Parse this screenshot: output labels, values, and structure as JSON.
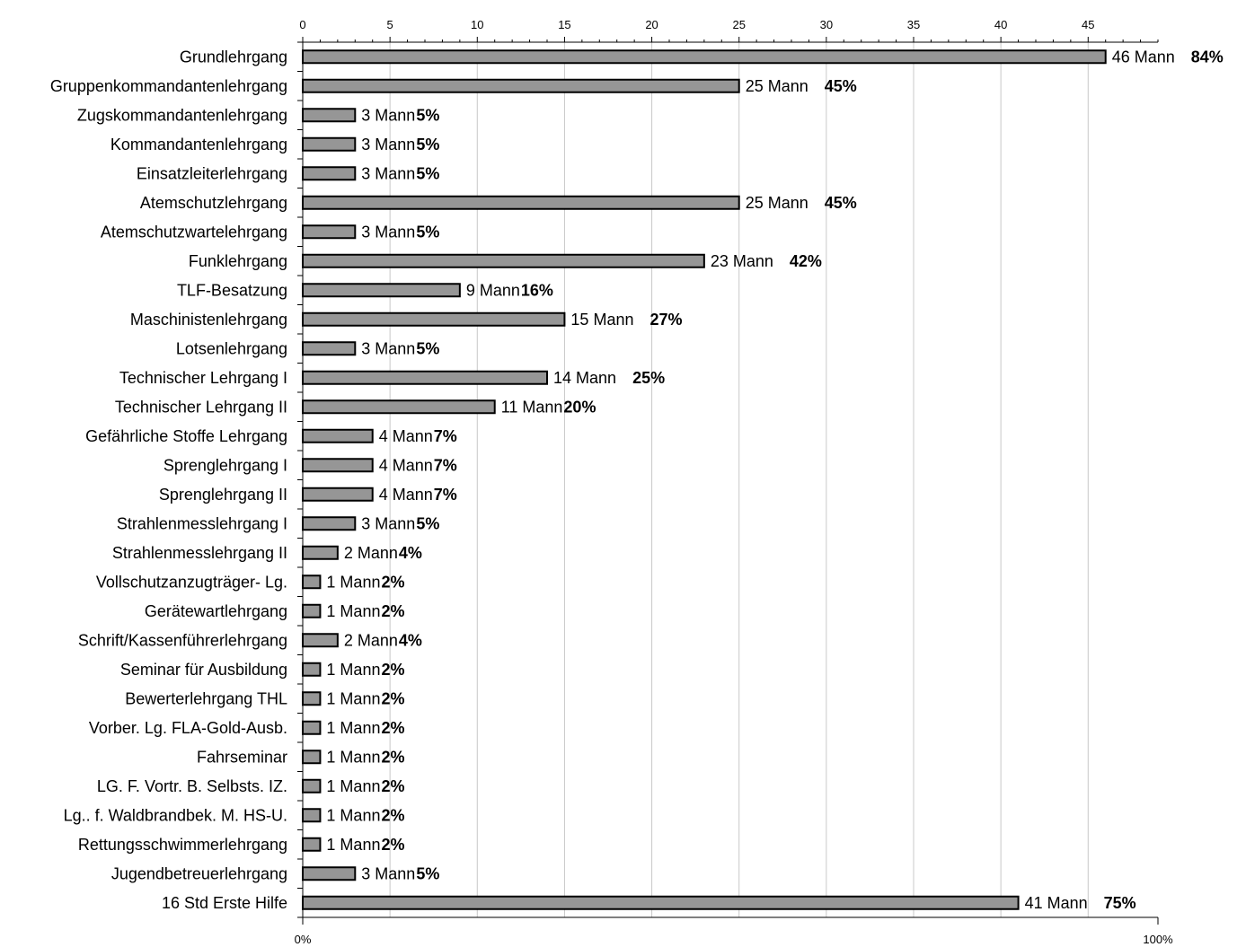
{
  "chart_data": {
    "type": "bar",
    "orientation": "horizontal",
    "categories": [
      "Grundlehrgang",
      "Gruppenkommandantenlehrgang",
      "Zugskommandantenlehrgang",
      "Kommandantenlehrgang",
      "Einsatzleiterlehrgang",
      "Atemschutzlehrgang",
      "Atemschutzwartelehrgang",
      "Funklehrgang",
      "TLF-Besatzung",
      "Maschinistenlehrgang",
      "Lotsenlehrgang",
      "Technischer Lehrgang  I",
      "Technischer Lehrgang II",
      "Gefährliche Stoffe Lehrgang",
      "Sprenglehrgang I",
      "Sprenglehrgang II",
      "Strahlenmesslehrgang I",
      "Strahlenmesslehrgang II",
      "Vollschutzanzugträger- Lg.",
      "Gerätewartlehrgang",
      "Schrift/Kassenführerlehrgang",
      "Seminar für Ausbildung",
      "Bewerterlehrgang THL",
      "Vorber. Lg. FLA-Gold-Ausb.",
      "Fahrseminar",
      "LG. F. Vortr. B. Selbsts. IZ.",
      "Lg.. f. Waldbrandbek. M. HS-U.",
      "Rettungsschwimmerlehrgang",
      "Jugendbetreuerlehrgang",
      "16 Std Erste Hilfe"
    ],
    "values": [
      46,
      25,
      3,
      3,
      3,
      25,
      3,
      23,
      9,
      15,
      3,
      14,
      11,
      4,
      4,
      4,
      3,
      2,
      1,
      1,
      2,
      1,
      1,
      1,
      1,
      1,
      1,
      1,
      3,
      41
    ],
    "value_labels": [
      "46 Mann",
      "25 Mann",
      "3 Mann",
      "3 Mann",
      "3 Mann",
      "25 Mann",
      "3 Mann",
      "23 Mann",
      "9 Mann",
      "15 Mann",
      "3 Mann",
      "14 Mann",
      "11 Mann",
      "4 Mann",
      "4 Mann",
      "4 Mann",
      "3 Mann",
      "2 Mann",
      "1 Mann",
      "1 Mann",
      "2 Mann",
      "1 Mann",
      "1 Mann",
      "1 Mann",
      "1 Mann",
      "1 Mann",
      "1 Mann",
      "1 Mann",
      "3 Mann",
      "41 Mann"
    ],
    "percent_labels": [
      "84%",
      "45%",
      "5%",
      "5%",
      "5%",
      "45%",
      "5%",
      "42%",
      "16%",
      "27%",
      "5%",
      "25%",
      "20%",
      "7%",
      "7%",
      "7%",
      "5%",
      "4%",
      "2%",
      "2%",
      "4%",
      "2%",
      "2%",
      "2%",
      "2%",
      "2%",
      "2%",
      "2%",
      "5%",
      "75%"
    ],
    "xlim": [
      0,
      49
    ],
    "x_ticks": [
      0,
      5,
      10,
      15,
      20,
      25,
      30,
      35,
      40,
      45
    ],
    "x_tick_labels": [
      "0",
      "5",
      "10",
      "15",
      "20",
      "25",
      "30",
      "35",
      "40",
      "45"
    ],
    "percent_axis_labels": [
      "0%",
      "100%"
    ],
    "grid": true,
    "bar_color": "#969696",
    "grid_color": "#c8c8c8"
  }
}
